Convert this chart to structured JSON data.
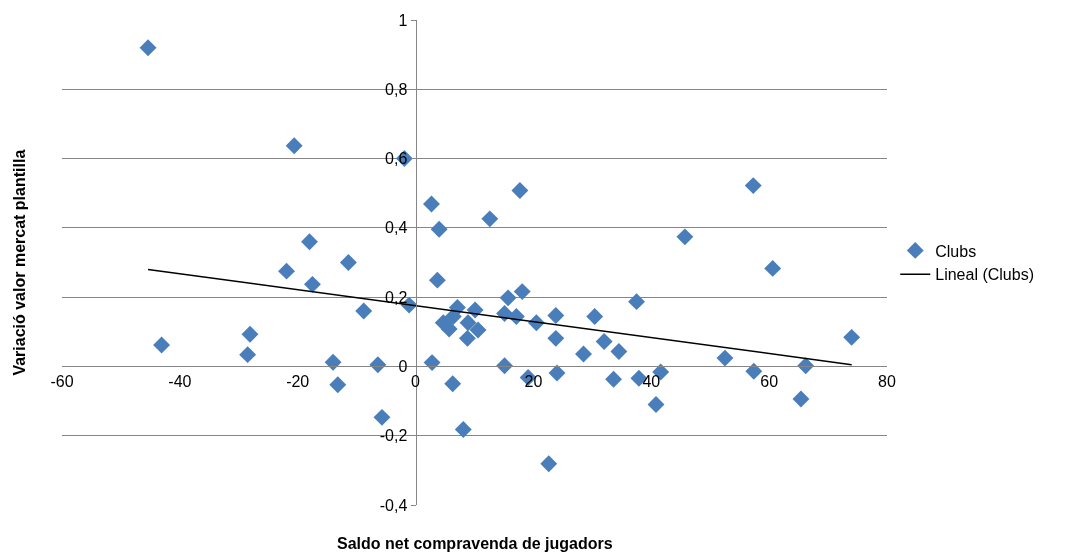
{
  "chart_data": {
    "type": "scatter",
    "xlabel": "Saldo net compravenda de jugadors",
    "ylabel": "Variació valor mercat plantilla",
    "xlim": [
      -60,
      80
    ],
    "xticks": [
      -60,
      -40,
      -20,
      0,
      20,
      40,
      60,
      80
    ],
    "ylim": [
      -0.4,
      1
    ],
    "yticks": [
      {
        "value": -0.4,
        "label": "-0,4"
      },
      {
        "value": -0.2,
        "label": "-0,2"
      },
      0,
      {
        "value": 0.2,
        "label": "0,2"
      },
      {
        "value": 0.4,
        "label": "0,4"
      },
      {
        "value": 0.6,
        "label": "0,6"
      },
      {
        "value": 0.8,
        "label": "0,8"
      },
      1
    ],
    "grid": "y",
    "legend": "right",
    "marker": "diamond",
    "series": [
      {
        "name": "Clubs",
        "color": "#4a7ebb",
        "x": [
          -45.4,
          -20.6,
          -1.9,
          2.7,
          4.0,
          12.6,
          17.7,
          45.7,
          57.3,
          -43.1,
          -28.1,
          -28.5,
          -21.9,
          -17.5,
          -11.4,
          -18.0,
          -8.8,
          -14.0,
          -13.2,
          -6.4,
          -5.7,
          -1.1,
          3.7,
          2.8,
          4.7,
          5.7,
          6.4,
          7.1,
          6.3,
          8.1,
          8.9,
          8.8,
          10.1,
          10.6,
          15.1,
          15.7,
          17.1,
          18.1,
          15.1,
          19.1,
          20.5,
          23.8,
          23.8,
          24.0,
          22.6,
          28.5,
          30.4,
          32.0,
          34.5,
          33.6,
          37.5,
          37.9,
          40.8,
          41.6,
          52.5,
          57.4,
          60.6,
          66.2,
          65.4,
          74.0
        ],
        "values": [
          0.92,
          0.637,
          0.6,
          0.469,
          0.396,
          0.426,
          0.508,
          0.374,
          0.522,
          0.062,
          0.093,
          0.034,
          0.275,
          0.237,
          0.3,
          0.36,
          0.16,
          0.012,
          -0.053,
          0.005,
          -0.147,
          0.177,
          0.249,
          0.011,
          0.126,
          0.108,
          0.144,
          0.17,
          -0.05,
          -0.182,
          0.126,
          0.081,
          0.163,
          0.105,
          0.153,
          0.198,
          0.144,
          0.216,
          0.002,
          -0.032,
          0.126,
          0.147,
          0.081,
          -0.019,
          -0.281,
          0.036,
          0.144,
          0.072,
          0.043,
          -0.037,
          0.187,
          -0.034,
          -0.11,
          -0.016,
          0.024,
          -0.014,
          0.283,
          0.002,
          -0.094,
          0.084
        ]
      },
      {
        "name": "Lineal (Clubs)",
        "color": "#000000",
        "type": "line",
        "marker": "none",
        "x": [
          -45.4,
          74.0
        ],
        "values": [
          0.28,
          0.005
        ]
      }
    ]
  }
}
